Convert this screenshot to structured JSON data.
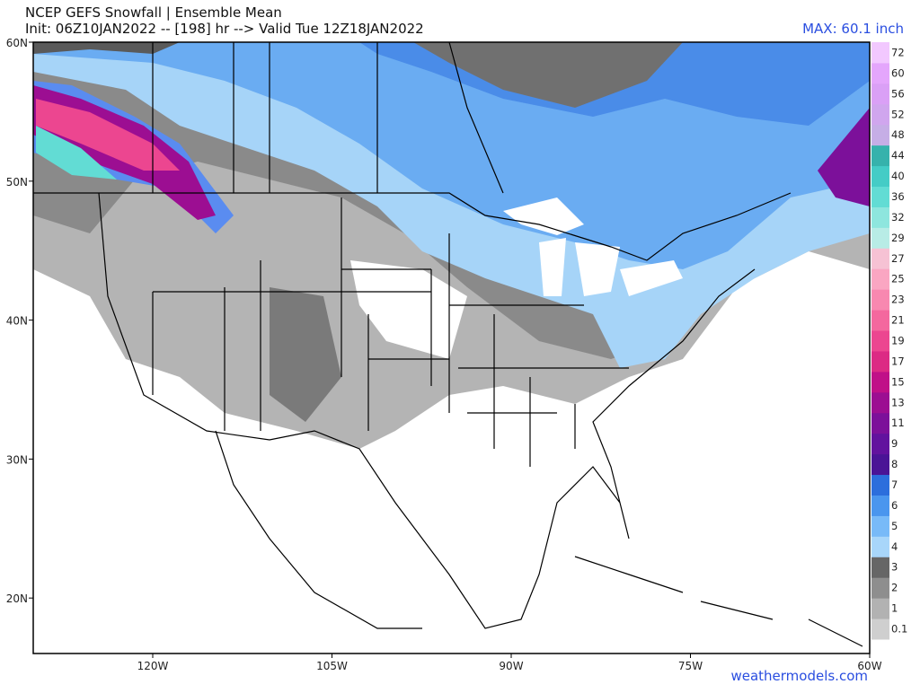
{
  "header": {
    "title": "NCEP GEFS Snowfall | Ensemble Mean",
    "subtitle": "Init: 06Z10JAN2022 -- [198] hr --> Valid Tue 12Z18JAN2022",
    "max_label": "MAX: 60.1 inch"
  },
  "map": {
    "lat_labels": [
      "60N",
      "50N",
      "40N",
      "30N",
      "20N"
    ],
    "lon_labels": [
      "120W",
      "105W",
      "90W",
      "75W",
      "60W"
    ]
  },
  "colorbar": {
    "levels": [
      {
        "label": "0.1",
        "color": "#cfcfcf"
      },
      {
        "label": "1",
        "color": "#b2b2b2"
      },
      {
        "label": "2",
        "color": "#8e8e8e"
      },
      {
        "label": "3",
        "color": "#666666"
      },
      {
        "label": "4",
        "color": "#a8d6fa"
      },
      {
        "label": "5",
        "color": "#78baf8"
      },
      {
        "label": "6",
        "color": "#4a96ee"
      },
      {
        "label": "7",
        "color": "#2c6edc"
      },
      {
        "label": "8",
        "color": "#4a1496"
      },
      {
        "label": "9",
        "color": "#62129e"
      },
      {
        "label": "11",
        "color": "#7c109a"
      },
      {
        "label": "13",
        "color": "#9c0e92"
      },
      {
        "label": "15",
        "color": "#c01088"
      },
      {
        "label": "17",
        "color": "#dc2a84"
      },
      {
        "label": "19",
        "color": "#ec4690"
      },
      {
        "label": "21",
        "color": "#f4689e"
      },
      {
        "label": "23",
        "color": "#f888b0"
      },
      {
        "label": "25",
        "color": "#faa6c2"
      },
      {
        "label": "27",
        "color": "#f6c2d4"
      },
      {
        "label": "29",
        "color": "#b8ece6"
      },
      {
        "label": "32",
        "color": "#8ee6de"
      },
      {
        "label": "36",
        "color": "#62dcd4"
      },
      {
        "label": "40",
        "color": "#44ccc6"
      },
      {
        "label": "44",
        "color": "#36b2ac"
      },
      {
        "label": "48",
        "color": "#c6aee6"
      },
      {
        "label": "52",
        "color": "#d0a6ee"
      },
      {
        "label": "56",
        "color": "#daa0f6"
      },
      {
        "label": "60",
        "color": "#e4a6fc"
      },
      {
        "label": "72",
        "color": "#f2c8ff"
      }
    ]
  },
  "footer": {
    "watermark": "weathermodels.com"
  }
}
